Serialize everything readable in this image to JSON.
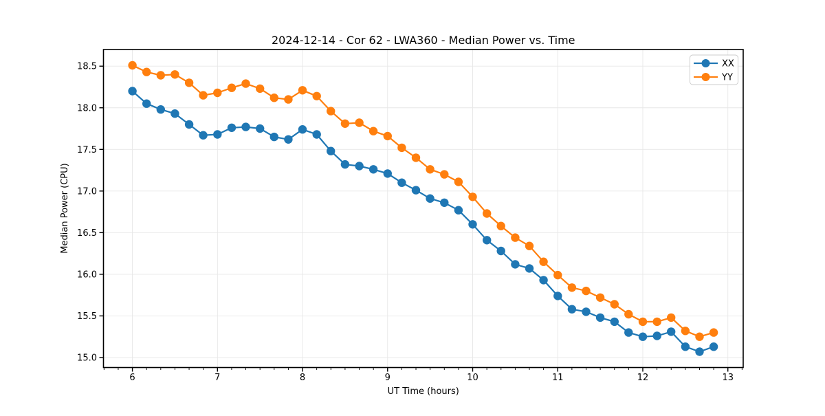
{
  "chart_data": {
    "type": "line",
    "title": "2024-12-14 - Cor 62 - LWA360 - Median Power vs. Time",
    "xlabel": "UT Time (hours)",
    "ylabel": "Median Power (CPU)",
    "xlim": [
      5.66,
      13.18
    ],
    "ylim": [
      14.88,
      18.7
    ],
    "xticks": [
      6,
      7,
      8,
      9,
      10,
      11,
      12,
      13
    ],
    "yticks": [
      15.0,
      15.5,
      16.0,
      16.5,
      17.0,
      17.5,
      18.0,
      18.5
    ],
    "x_minor_step_hours": 0.1667,
    "grid": true,
    "grid_color": "#e7e7e7",
    "legend_position": "upper right",
    "x": [
      6.0,
      6.167,
      6.333,
      6.5,
      6.667,
      6.833,
      7.0,
      7.167,
      7.333,
      7.5,
      7.667,
      7.833,
      8.0,
      8.167,
      8.333,
      8.5,
      8.667,
      8.833,
      9.0,
      9.167,
      9.333,
      9.5,
      9.667,
      9.833,
      10.0,
      10.167,
      10.333,
      10.5,
      10.667,
      10.833,
      11.0,
      11.167,
      11.333,
      11.5,
      11.667,
      11.833,
      12.0,
      12.167,
      12.333,
      12.5,
      12.667,
      12.833
    ],
    "series": [
      {
        "name": "XX",
        "color": "#1f77b4",
        "values": [
          18.2,
          18.05,
          17.98,
          17.93,
          17.8,
          17.67,
          17.68,
          17.76,
          17.77,
          17.75,
          17.65,
          17.62,
          17.74,
          17.68,
          17.48,
          17.32,
          17.3,
          17.26,
          17.21,
          17.1,
          17.01,
          16.91,
          16.86,
          16.77,
          16.6,
          16.41,
          16.28,
          16.12,
          16.07,
          15.93,
          15.74,
          15.58,
          15.55,
          15.48,
          15.43,
          15.3,
          15.25,
          15.26,
          15.31,
          15.13,
          15.07,
          15.13
        ]
      },
      {
        "name": "YY",
        "color": "#ff7f0e",
        "values": [
          18.51,
          18.43,
          18.39,
          18.4,
          18.3,
          18.15,
          18.18,
          18.24,
          18.29,
          18.23,
          18.12,
          18.1,
          18.21,
          18.14,
          17.96,
          17.81,
          17.82,
          17.72,
          17.66,
          17.52,
          17.4,
          17.26,
          17.2,
          17.11,
          16.93,
          16.73,
          16.58,
          16.44,
          16.34,
          16.15,
          15.99,
          15.84,
          15.8,
          15.72,
          15.64,
          15.52,
          15.43,
          15.43,
          15.48,
          15.32,
          15.25,
          15.3
        ]
      }
    ]
  }
}
